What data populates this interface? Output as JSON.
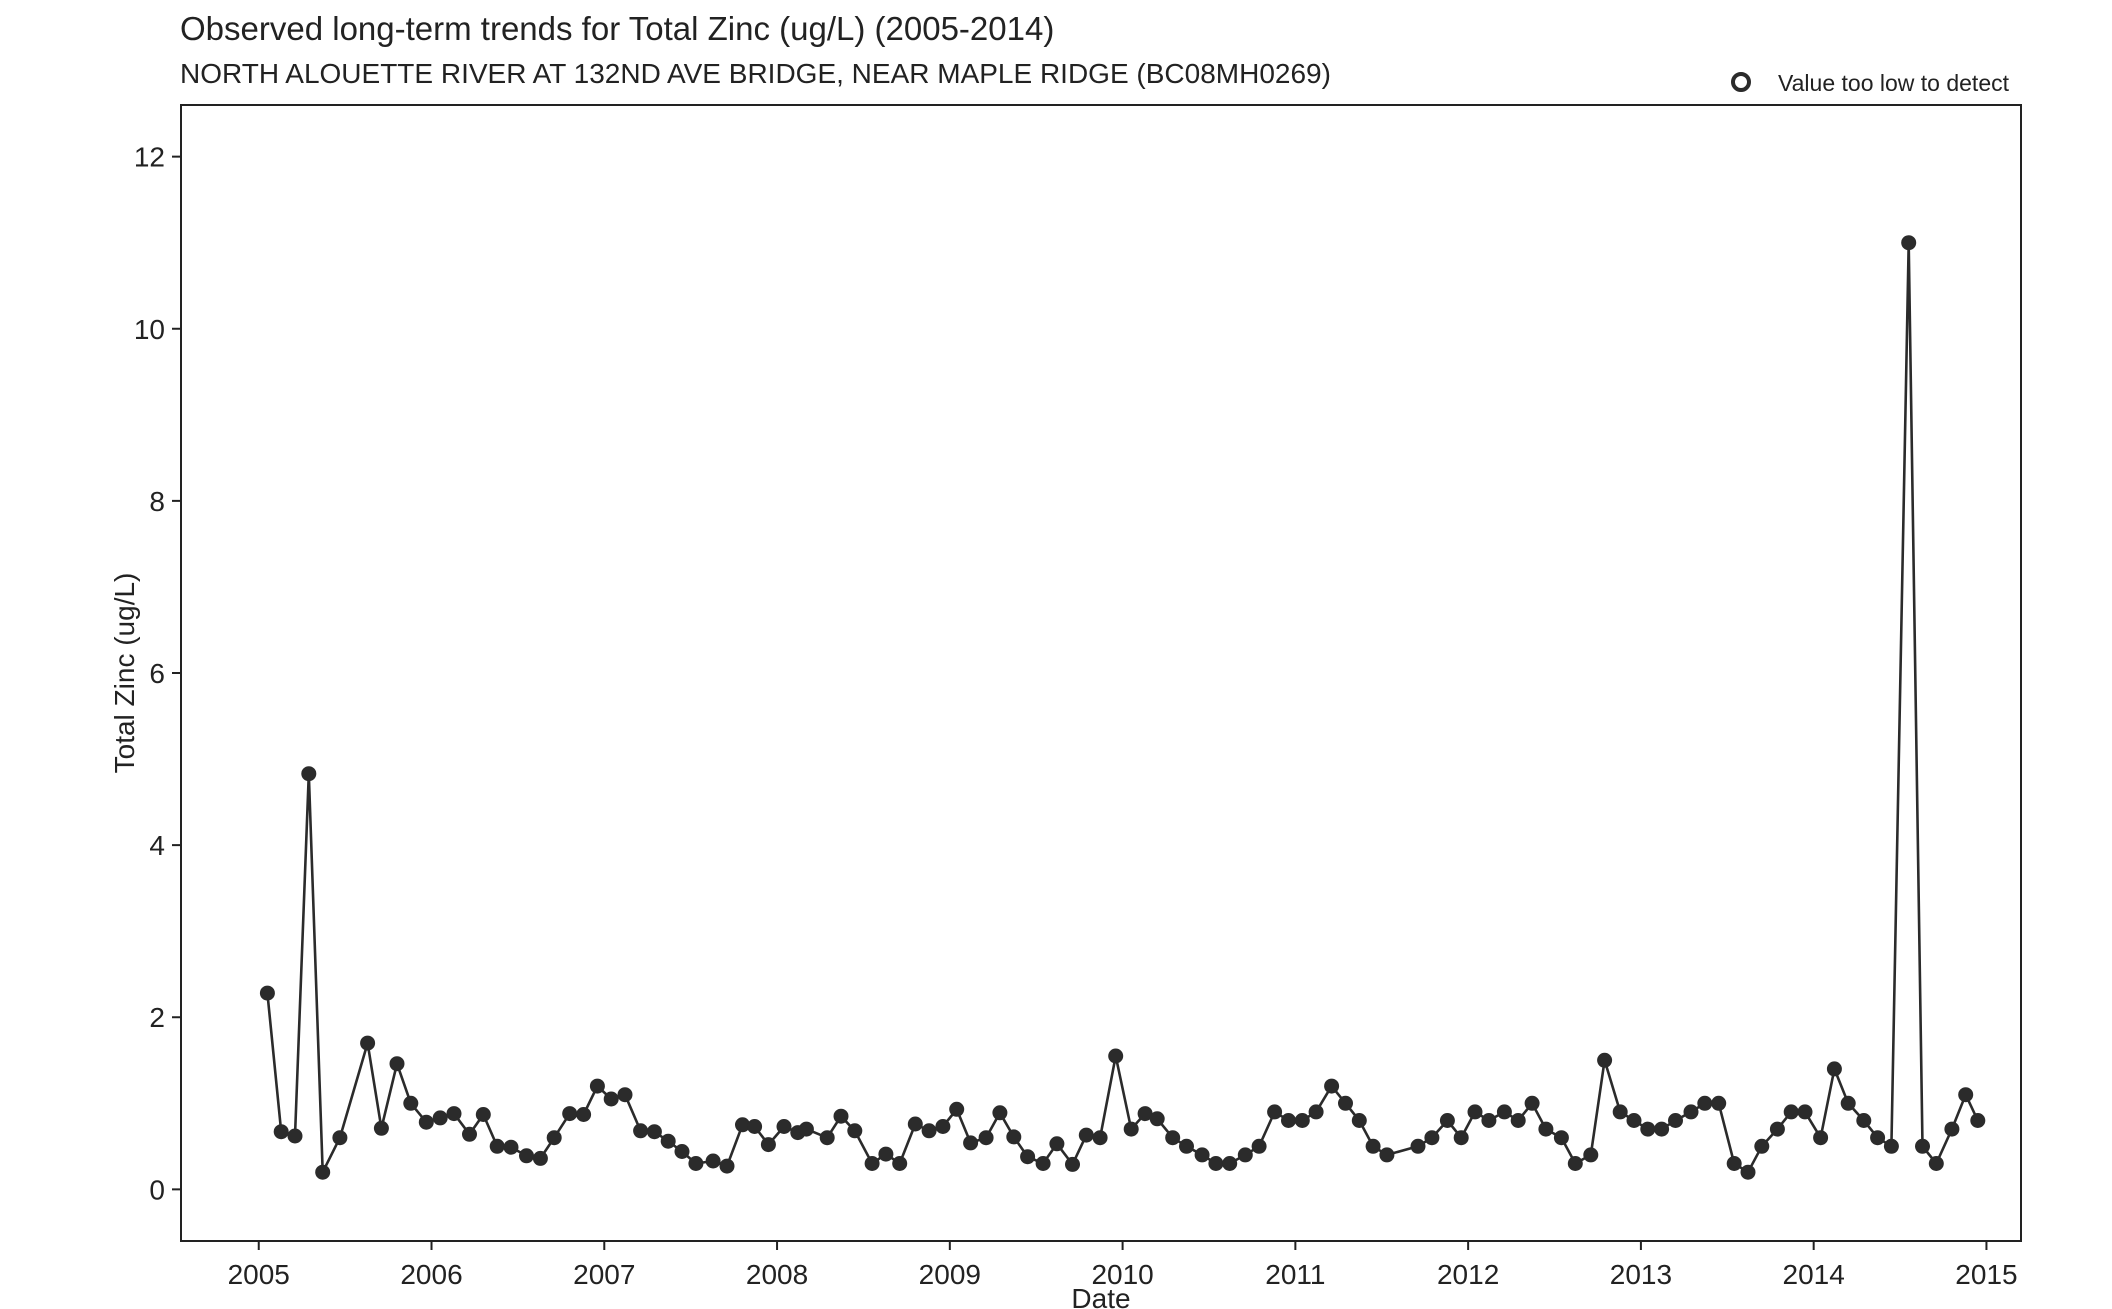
{
  "chart_data": {
    "type": "line",
    "title": "Observed long-term trends for Total Zinc (ug/L) (2005-2014)",
    "subtitle": "NORTH ALOUETTE RIVER AT 132ND AVE BRIDGE, NEAR MAPLE RIDGE (BC08MH0269)",
    "xlabel": "Date",
    "ylabel": "Total Zinc (ug/L)",
    "xlim": [
      2004.55,
      2015.2
    ],
    "ylim": [
      -0.6,
      12.6
    ],
    "xticks": [
      2005,
      2006,
      2007,
      2008,
      2009,
      2010,
      2011,
      2012,
      2013,
      2014,
      2015
    ],
    "xtick_labels": [
      "2005",
      "2006",
      "2007",
      "2008",
      "2009",
      "2010",
      "2011",
      "2012",
      "2013",
      "2014",
      "2015"
    ],
    "yticks": [
      0,
      2,
      4,
      6,
      8,
      10,
      12
    ],
    "ytick_labels": [
      "0",
      "2",
      "4",
      "6",
      "8",
      "10",
      "12"
    ],
    "grid": false,
    "legend": {
      "position": "top-right",
      "entries": [
        {
          "label": "Value too low to detect",
          "marker": "open-circle"
        }
      ]
    },
    "series": [
      {
        "color": "#2b2b2b",
        "marker": "filled-circle",
        "x": [
          2005.05,
          2005.13,
          2005.21,
          2005.29,
          2005.37,
          2005.47,
          2005.63,
          2005.71,
          2005.8,
          2005.88,
          2005.97,
          2006.05,
          2006.13,
          2006.22,
          2006.3,
          2006.38,
          2006.46,
          2006.55,
          2006.63,
          2006.71,
          2006.8,
          2006.88,
          2006.96,
          2007.04,
          2007.12,
          2007.21,
          2007.29,
          2007.37,
          2007.45,
          2007.53,
          2007.63,
          2007.71,
          2007.8,
          2007.87,
          2007.95,
          2008.04,
          2008.12,
          2008.17,
          2008.29,
          2008.37,
          2008.45,
          2008.55,
          2008.63,
          2008.71,
          2008.8,
          2008.88,
          2008.96,
          2009.04,
          2009.12,
          2009.21,
          2009.29,
          2009.37,
          2009.45,
          2009.54,
          2009.62,
          2009.71,
          2009.79,
          2009.87,
          2009.96,
          2010.05,
          2010.13,
          2010.2,
          2010.29,
          2010.37,
          2010.46,
          2010.54,
          2010.62,
          2010.71,
          2010.79,
          2010.88,
          2010.96,
          2011.04,
          2011.12,
          2011.21,
          2011.29,
          2011.37,
          2011.45,
          2011.53,
          2011.71,
          2011.79,
          2011.88,
          2011.96,
          2012.04,
          2012.12,
          2012.21,
          2012.29,
          2012.37,
          2012.45,
          2012.54,
          2012.62,
          2012.71,
          2012.79,
          2012.88,
          2012.96,
          2013.04,
          2013.12,
          2013.2,
          2013.29,
          2013.37,
          2013.45,
          2013.54,
          2013.62,
          2013.7,
          2013.79,
          2013.87,
          2013.95,
          2014.04,
          2014.12,
          2014.2,
          2014.29,
          2014.37,
          2014.45,
          2014.55,
          2014.63,
          2014.71,
          2014.8,
          2014.88,
          2014.95
        ],
        "y": [
          2.28,
          0.67,
          0.62,
          4.83,
          0.2,
          0.6,
          1.7,
          0.71,
          1.46,
          1.0,
          0.78,
          0.83,
          0.88,
          0.64,
          0.87,
          0.5,
          0.49,
          0.39,
          0.36,
          0.6,
          0.88,
          0.87,
          1.2,
          1.05,
          1.1,
          0.68,
          0.67,
          0.56,
          0.44,
          0.3,
          0.33,
          0.27,
          0.75,
          0.73,
          0.52,
          0.73,
          0.66,
          0.7,
          0.6,
          0.85,
          0.68,
          0.3,
          0.41,
          0.3,
          0.76,
          0.68,
          0.73,
          0.93,
          0.54,
          0.6,
          0.89,
          0.61,
          0.38,
          0.3,
          0.53,
          0.29,
          0.63,
          0.6,
          1.55,
          0.7,
          0.88,
          0.82,
          0.6,
          0.5,
          0.4,
          0.3,
          0.3,
          0.4,
          0.5,
          0.9,
          0.8,
          0.8,
          0.9,
          1.2,
          1.0,
          0.8,
          0.5,
          0.4,
          0.5,
          0.6,
          0.8,
          0.6,
          0.9,
          0.8,
          0.9,
          0.8,
          1.0,
          0.7,
          0.6,
          0.3,
          0.4,
          1.5,
          0.9,
          0.8,
          0.7,
          0.7,
          0.8,
          0.9,
          1.0,
          1.0,
          0.3,
          0.2,
          0.5,
          0.7,
          0.9,
          0.9,
          0.6,
          1.4,
          1.0,
          0.8,
          0.6,
          0.5,
          11.0,
          0.5,
          0.3,
          0.7,
          1.1,
          0.8
        ]
      }
    ]
  }
}
